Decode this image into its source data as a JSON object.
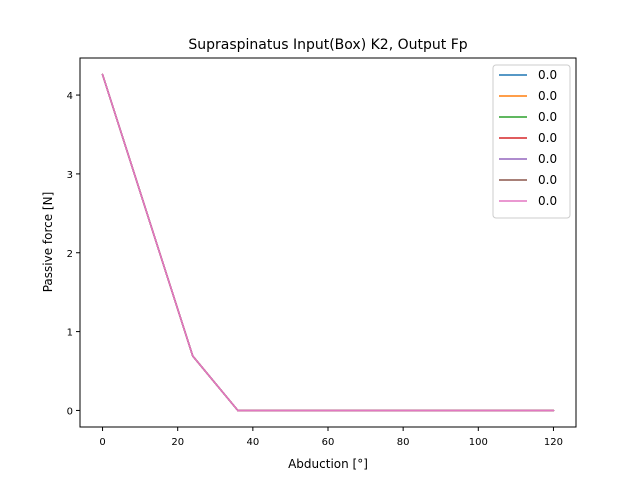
{
  "chart_data": {
    "type": "line",
    "title": "Supraspinatus Input(Box) K2, Output Fp",
    "xlabel": "Abduction [°]",
    "ylabel": "Passive force [N]",
    "xlim": [
      -6,
      126
    ],
    "ylim": [
      -0.21,
      4.47
    ],
    "xticks": [
      0,
      20,
      40,
      60,
      80,
      100,
      120
    ],
    "xtick_labels": [
      "0",
      "20",
      "40",
      "60",
      "80",
      "100",
      "120"
    ],
    "yticks": [
      0,
      1,
      2,
      3,
      4
    ],
    "ytick_labels": [
      "0",
      "1",
      "2",
      "3",
      "4"
    ],
    "grid": false,
    "legend_position": "top-right",
    "x": [
      0,
      24,
      36,
      120
    ],
    "series": [
      {
        "name": "0.0",
        "color": "#1f77b4",
        "values": [
          4.26,
          0.69,
          0.0,
          0.0
        ]
      },
      {
        "name": "0.0",
        "color": "#ff7f0e",
        "values": [
          4.26,
          0.69,
          0.0,
          0.0
        ]
      },
      {
        "name": "0.0",
        "color": "#2ca02c",
        "values": [
          4.26,
          0.69,
          0.0,
          0.0
        ]
      },
      {
        "name": "0.0",
        "color": "#d62728",
        "values": [
          4.26,
          0.69,
          0.0,
          0.0
        ]
      },
      {
        "name": "0.0",
        "color": "#9467bd",
        "values": [
          4.26,
          0.69,
          0.0,
          0.0
        ]
      },
      {
        "name": "0.0",
        "color": "#8c564b",
        "values": [
          4.26,
          0.69,
          0.0,
          0.0
        ]
      },
      {
        "name": "0.0",
        "color": "#e377c2",
        "values": [
          4.26,
          0.69,
          0.0,
          0.0
        ]
      }
    ]
  }
}
